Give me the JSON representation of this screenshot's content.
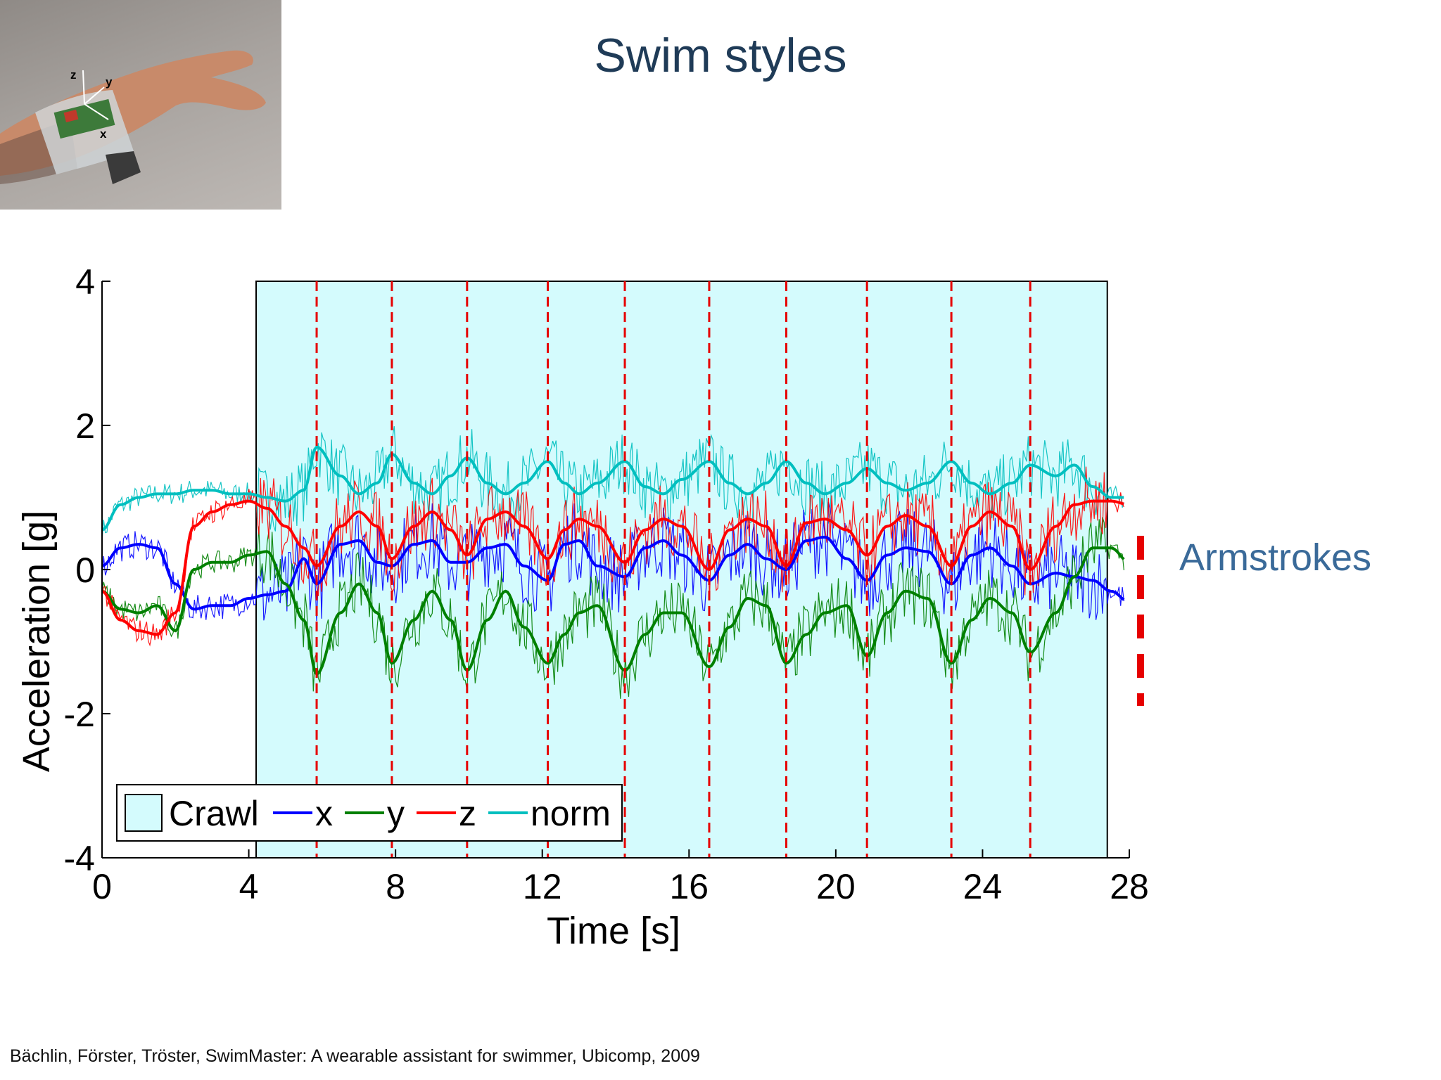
{
  "slide": {
    "title": "Swim styles",
    "citation": "Bächlin, Förster, Tröster, SwimMaster: A wearable assistant for swimmer, Ubicomp, 2009",
    "side_label": "Armstrokes"
  },
  "photo": {
    "description_icon": "wrist-sensor-photo",
    "axis_labels": [
      "z",
      "y",
      "x"
    ]
  },
  "colors": {
    "x": "#0000ff",
    "y": "#008000",
    "z": "#ff0000",
    "norm": "#00bfbf",
    "crawl_fill": "#d4fbfd",
    "stroke_marker": "#e60000",
    "title": "#1f3b57"
  },
  "chart_data": {
    "type": "line",
    "xlabel": "Time [s]",
    "ylabel": "Acceleration [g]",
    "xlim": [
      0,
      28
    ],
    "ylim": [
      -4,
      4
    ],
    "xticks": [
      0,
      4,
      8,
      12,
      16,
      20,
      24,
      28
    ],
    "yticks": [
      -4,
      -2,
      0,
      2,
      4
    ],
    "grid": false,
    "crawl_region": [
      4.2,
      27.4
    ],
    "stroke_markers": [
      5.85,
      7.9,
      9.95,
      12.15,
      14.25,
      16.55,
      18.65,
      20.85,
      23.15,
      25.3
    ],
    "legend": {
      "placement": "bottom-left",
      "entries": [
        "Crawl",
        "x",
        "y",
        "z",
        "norm"
      ]
    },
    "series": [
      {
        "name": "x",
        "x": [
          0,
          0.5,
          1,
          1.5,
          2,
          2.5,
          3,
          3.5,
          4,
          4.5,
          5,
          5.5,
          5.85,
          6.5,
          7,
          7.5,
          7.9,
          8.5,
          9,
          9.5,
          9.95,
          10.5,
          11,
          11.5,
          12.15,
          12.6,
          13,
          13.5,
          14.25,
          14.8,
          15.3,
          15.8,
          16.55,
          17.1,
          17.6,
          18.1,
          18.65,
          19.2,
          19.7,
          20.3,
          20.85,
          21.4,
          21.9,
          22.5,
          23.15,
          23.7,
          24.2,
          24.8,
          25.3,
          26,
          26.5,
          27,
          27.5,
          28
        ],
        "values": [
          0.05,
          0.3,
          0.35,
          0.3,
          -0.2,
          -0.55,
          -0.5,
          -0.5,
          -0.4,
          -0.35,
          -0.3,
          0.15,
          -0.2,
          0.35,
          0.4,
          0.1,
          0.05,
          0.35,
          0.4,
          0.1,
          0.1,
          0.3,
          0.35,
          0.05,
          -0.15,
          0.35,
          0.4,
          0.05,
          -0.1,
          0.3,
          0.4,
          0.2,
          -0.15,
          0.2,
          0.35,
          0.15,
          0.0,
          0.4,
          0.45,
          0.15,
          -0.15,
          0.2,
          0.3,
          0.25,
          -0.2,
          0.2,
          0.3,
          0.05,
          -0.2,
          -0.05,
          -0.1,
          -0.15,
          -0.3,
          -0.45
        ]
      },
      {
        "name": "y",
        "x": [
          0,
          0.5,
          1,
          1.5,
          2,
          2.5,
          3,
          3.5,
          4,
          4.5,
          5,
          5.5,
          5.85,
          6.5,
          7,
          7.5,
          7.9,
          8.5,
          9,
          9.5,
          9.95,
          10.5,
          11,
          11.5,
          12.15,
          12.6,
          13,
          13.5,
          14.25,
          14.8,
          15.3,
          15.8,
          16.55,
          17.1,
          17.6,
          18.1,
          18.65,
          19.2,
          19.7,
          20.3,
          20.85,
          21.4,
          21.9,
          22.5,
          23.15,
          23.7,
          24.2,
          24.8,
          25.3,
          26,
          26.5,
          27,
          27.5,
          28
        ],
        "values": [
          -0.3,
          -0.55,
          -0.6,
          -0.5,
          -0.85,
          0.0,
          0.1,
          0.1,
          0.2,
          0.25,
          -0.2,
          -0.7,
          -1.45,
          -0.6,
          -0.2,
          -0.6,
          -1.3,
          -0.7,
          -0.3,
          -0.7,
          -1.4,
          -0.7,
          -0.3,
          -0.8,
          -1.3,
          -0.9,
          -0.6,
          -0.5,
          -1.4,
          -0.9,
          -0.6,
          -0.6,
          -1.35,
          -0.8,
          -0.4,
          -0.5,
          -1.3,
          -0.9,
          -0.6,
          -0.5,
          -1.2,
          -0.6,
          -0.3,
          -0.4,
          -1.3,
          -0.7,
          -0.4,
          -0.6,
          -1.15,
          -0.6,
          -0.1,
          0.3,
          0.3,
          0.1
        ]
      },
      {
        "name": "z",
        "x": [
          0,
          0.5,
          1,
          1.5,
          2,
          2.5,
          3,
          3.5,
          4,
          4.5,
          5,
          5.5,
          5.85,
          6.5,
          7,
          7.5,
          7.9,
          8.5,
          9,
          9.5,
          9.95,
          10.5,
          11,
          11.5,
          12.15,
          12.6,
          13,
          13.5,
          14.25,
          14.8,
          15.3,
          15.8,
          16.55,
          17.1,
          17.6,
          18.1,
          18.65,
          19.2,
          19.7,
          20.3,
          20.85,
          21.4,
          21.9,
          22.5,
          23.15,
          23.7,
          24.2,
          24.8,
          25.3,
          26,
          26.5,
          27,
          27.5,
          28
        ],
        "values": [
          -0.3,
          -0.7,
          -0.85,
          -0.9,
          -0.6,
          0.6,
          0.8,
          0.9,
          0.95,
          0.85,
          0.6,
          0.3,
          0.05,
          0.6,
          0.8,
          0.6,
          0.15,
          0.6,
          0.8,
          0.55,
          0.2,
          0.7,
          0.8,
          0.6,
          0.15,
          0.55,
          0.7,
          0.6,
          0.1,
          0.55,
          0.7,
          0.6,
          0.0,
          0.55,
          0.7,
          0.6,
          0.05,
          0.65,
          0.7,
          0.55,
          0.2,
          0.6,
          0.75,
          0.6,
          0.05,
          0.6,
          0.8,
          0.6,
          0.0,
          0.6,
          0.9,
          0.95,
          0.95,
          0.9
        ]
      },
      {
        "name": "norm",
        "x": [
          0,
          0.5,
          1,
          1.5,
          2,
          2.5,
          3,
          3.5,
          4,
          4.5,
          5,
          5.5,
          5.85,
          6.5,
          7,
          7.5,
          7.9,
          8.5,
          9,
          9.5,
          9.95,
          10.5,
          11,
          11.5,
          12.15,
          12.6,
          13,
          13.5,
          14.25,
          14.8,
          15.3,
          15.8,
          16.55,
          17.1,
          17.6,
          18.1,
          18.65,
          19.2,
          19.7,
          20.3,
          20.85,
          21.4,
          21.9,
          22.5,
          23.15,
          23.7,
          24.2,
          24.8,
          25.3,
          26,
          26.5,
          27,
          27.5,
          28
        ],
        "values": [
          0.55,
          0.9,
          1.0,
          1.05,
          1.05,
          1.1,
          1.1,
          1.05,
          1.05,
          1.0,
          0.95,
          1.1,
          1.7,
          1.3,
          1.05,
          1.2,
          1.6,
          1.2,
          1.05,
          1.3,
          1.55,
          1.2,
          1.05,
          1.2,
          1.5,
          1.2,
          1.05,
          1.2,
          1.5,
          1.15,
          1.05,
          1.25,
          1.5,
          1.2,
          1.05,
          1.2,
          1.5,
          1.2,
          1.05,
          1.2,
          1.4,
          1.2,
          1.1,
          1.2,
          1.5,
          1.2,
          1.05,
          1.2,
          1.45,
          1.3,
          1.45,
          1.15,
          1.0,
          1.0
        ]
      }
    ]
  }
}
